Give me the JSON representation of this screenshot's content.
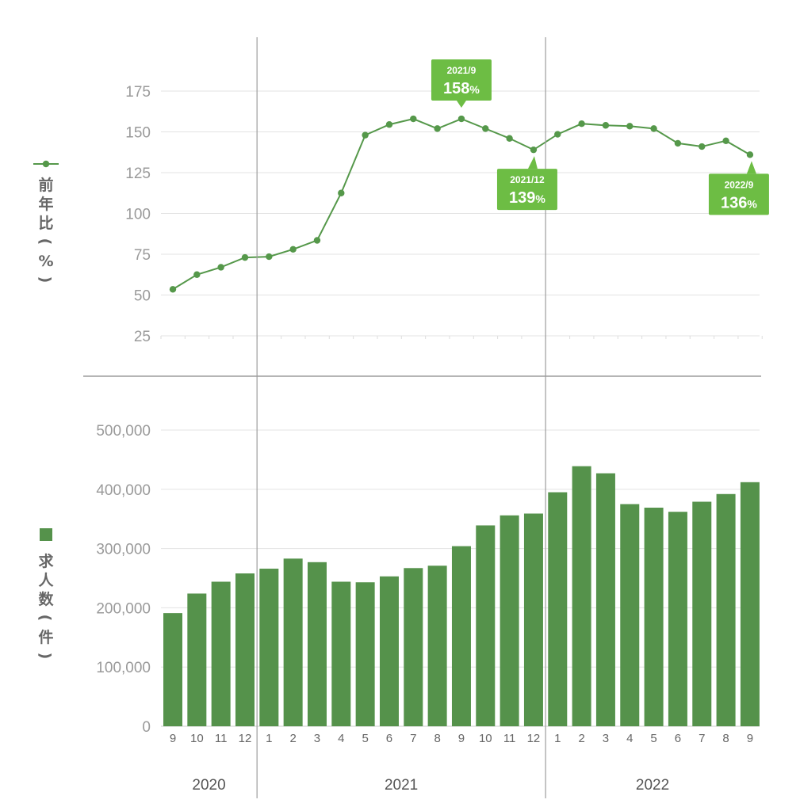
{
  "chart_data": [
    {
      "type": "line",
      "ylabel": "前年比(%)",
      "ylim": [
        25,
        175
      ],
      "yticks": [
        25,
        50,
        75,
        100,
        125,
        150,
        175
      ],
      "grid": true,
      "color": "#55984a",
      "x": [
        "2020/9",
        "2020/10",
        "2020/11",
        "2020/12",
        "2021/1",
        "2021/2",
        "2021/3",
        "2021/4",
        "2021/5",
        "2021/6",
        "2021/7",
        "2021/8",
        "2021/9",
        "2021/10",
        "2021/11",
        "2021/12",
        "2022/1",
        "2022/2",
        "2022/3",
        "2022/4",
        "2022/5",
        "2022/6",
        "2022/7",
        "2022/8",
        "2022/9"
      ],
      "values": [
        53.5,
        62.5,
        67,
        73,
        73.5,
        78,
        83.5,
        112.5,
        148,
        154.5,
        158,
        152,
        158,
        152,
        146,
        139,
        148.5,
        155,
        154,
        153.5,
        152,
        143,
        141,
        144.5,
        136
      ],
      "annotations": [
        {
          "index": 12,
          "date": "2021/9",
          "value": "158",
          "unit": "%",
          "position": "above"
        },
        {
          "index": 15,
          "date": "2021/12",
          "value": "139",
          "unit": "%",
          "position": "below"
        },
        {
          "index": 24,
          "date": "2022/9",
          "value": "136",
          "unit": "%",
          "position": "below"
        }
      ]
    },
    {
      "type": "bar",
      "ylabel": "求人数(件)",
      "ylim": [
        0,
        500000
      ],
      "yticks": [
        0,
        100000,
        200000,
        300000,
        400000,
        500000
      ],
      "ytick_labels": [
        "0",
        "100,000",
        "200,000",
        "300,000",
        "400,000",
        "500,000"
      ],
      "grid": true,
      "color": "#55924b",
      "x": [
        "2020/9",
        "2020/10",
        "2020/11",
        "2020/12",
        "2021/1",
        "2021/2",
        "2021/3",
        "2021/4",
        "2021/5",
        "2021/6",
        "2021/7",
        "2021/8",
        "2021/9",
        "2021/10",
        "2021/11",
        "2021/12",
        "2022/1",
        "2022/2",
        "2022/3",
        "2022/4",
        "2022/5",
        "2022/6",
        "2022/7",
        "2022/8",
        "2022/9"
      ],
      "values": [
        191000,
        224000,
        244000,
        258000,
        266000,
        283000,
        277000,
        244000,
        243000,
        253000,
        267000,
        271000,
        304000,
        339000,
        356000,
        359000,
        395000,
        439000,
        427000,
        375000,
        369000,
        362000,
        379000,
        392000,
        412000
      ]
    }
  ],
  "x_axis": {
    "months": [
      "9",
      "10",
      "11",
      "12",
      "1",
      "2",
      "3",
      "4",
      "5",
      "6",
      "7",
      "8",
      "9",
      "10",
      "11",
      "12",
      "1",
      "2",
      "3",
      "4",
      "5",
      "6",
      "7",
      "8",
      "9"
    ],
    "years": [
      {
        "label": "2020",
        "start": 0,
        "end": 3
      },
      {
        "label": "2021",
        "start": 4,
        "end": 15
      },
      {
        "label": "2022",
        "start": 16,
        "end": 24
      }
    ]
  },
  "legend": {
    "line_label": "前年比(%)",
    "bar_label": "求人数(件)"
  }
}
